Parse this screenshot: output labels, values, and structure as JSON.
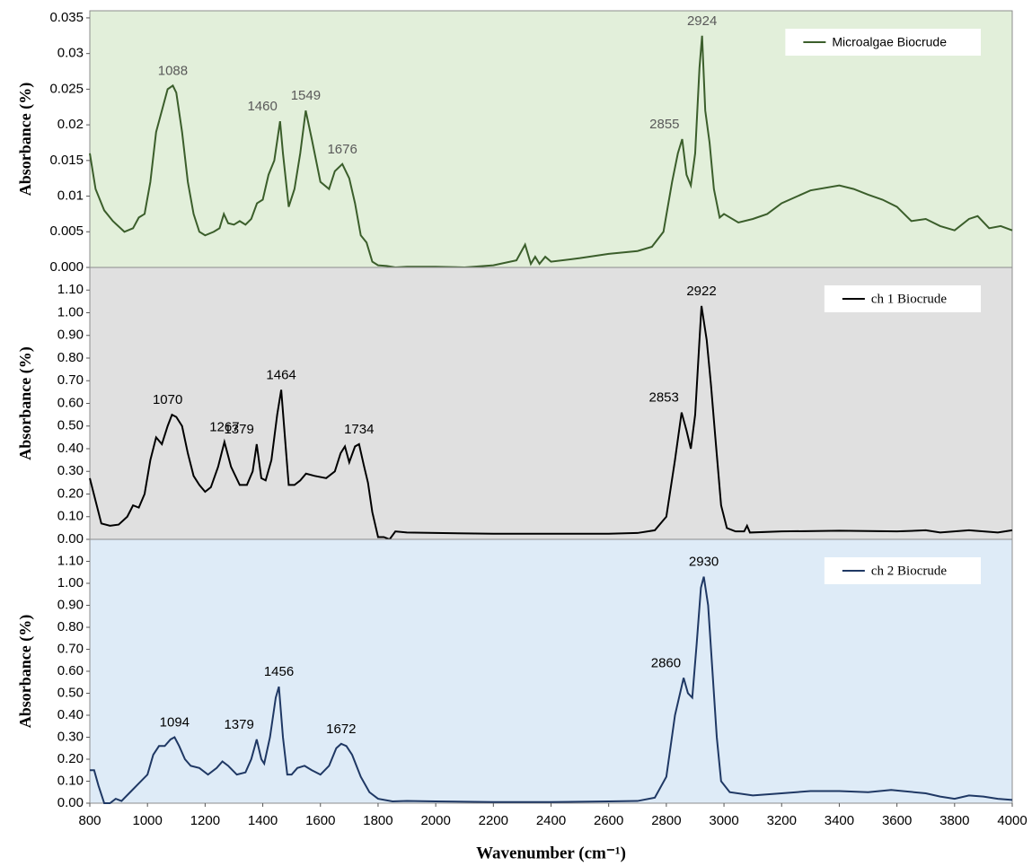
{
  "chart_data": [
    {
      "type": "line",
      "ylabel": "Absorbance (%)",
      "legend": "upper right",
      "background": "#e2efda",
      "xlim": [
        800,
        4000
      ],
      "ylim": [
        0,
        0.036
      ],
      "yticks": [
        {
          "value": 0,
          "label": "0.000"
        },
        0.005,
        0.01,
        0.015,
        0.02,
        0.025,
        0.03,
        0.035
      ],
      "annotations": [
        "1088",
        "1460",
        "1549",
        "1676",
        "2855",
        "2924"
      ],
      "x": [
        800,
        820,
        850,
        880,
        920,
        950,
        970,
        990,
        1010,
        1030,
        1050,
        1070,
        1088,
        1100,
        1120,
        1140,
        1160,
        1180,
        1200,
        1230,
        1250,
        1265,
        1280,
        1300,
        1320,
        1340,
        1360,
        1380,
        1400,
        1420,
        1440,
        1460,
        1470,
        1490,
        1510,
        1530,
        1549,
        1570,
        1600,
        1630,
        1650,
        1676,
        1700,
        1720,
        1740,
        1760,
        1780,
        1800,
        1830,
        1860,
        1900,
        2000,
        2100,
        2200,
        2280,
        2310,
        2330,
        2345,
        2360,
        2380,
        2400,
        2500,
        2600,
        2700,
        2750,
        2790,
        2820,
        2840,
        2855,
        2870,
        2885,
        2900,
        2915,
        2924,
        2935,
        2950,
        2965,
        2985,
        3000,
        3050,
        3100,
        3150,
        3200,
        3300,
        3400,
        3450,
        3500,
        3550,
        3600,
        3650,
        3700,
        3750,
        3800,
        3850,
        3880,
        3920,
        3960,
        4000
      ],
      "series": [
        {
          "name": "Microalgae Biocrude",
          "color": "#3b5e2b",
          "values": [
            0.016,
            0.011,
            0.008,
            0.0065,
            0.005,
            0.0055,
            0.007,
            0.0075,
            0.012,
            0.019,
            0.022,
            0.025,
            0.0255,
            0.0245,
            0.019,
            0.012,
            0.0075,
            0.005,
            0.0045,
            0.005,
            0.0055,
            0.0075,
            0.0062,
            0.006,
            0.0065,
            0.006,
            0.0068,
            0.009,
            0.0095,
            0.013,
            0.015,
            0.0205,
            0.016,
            0.0085,
            0.011,
            0.016,
            0.022,
            0.018,
            0.012,
            0.011,
            0.0135,
            0.0145,
            0.0125,
            0.009,
            0.0045,
            0.0035,
            0.0008,
            0.0003,
            0.0002,
            0,
            0.0001,
            0.0001,
            0,
            0.0003,
            0.001,
            0.0032,
            0.0005,
            0.0015,
            0.0005,
            0.0015,
            0.0008,
            0.0013,
            0.0019,
            0.0023,
            0.0029,
            0.005,
            0.012,
            0.016,
            0.018,
            0.013,
            0.0115,
            0.016,
            0.028,
            0.0325,
            0.022,
            0.0175,
            0.011,
            0.007,
            0.0075,
            0.0063,
            0.0068,
            0.0075,
            0.009,
            0.0108,
            0.0115,
            0.011,
            0.0102,
            0.0095,
            0.0085,
            0.0065,
            0.0068,
            0.0058,
            0.0052,
            0.0068,
            0.0072,
            0.0055,
            0.0058,
            0.0052
          ]
        }
      ]
    },
    {
      "type": "line",
      "ylabel": "Absorbance (%)",
      "legend": "upper right",
      "background": "#e0e0e0",
      "xlim": [
        800,
        4000
      ],
      "ylim": [
        0,
        1.2
      ],
      "yticks": [
        {
          "value": 0,
          "label": "0.00"
        },
        {
          "value": 0.1,
          "label": "0.10"
        },
        {
          "value": 0.2,
          "label": "0.20"
        },
        {
          "value": 0.3,
          "label": "0.30"
        },
        {
          "value": 0.4,
          "label": "0.40"
        },
        {
          "value": 0.5,
          "label": "0.50"
        },
        {
          "value": 0.6,
          "label": "0.60"
        },
        {
          "value": 0.7,
          "label": "0.70"
        },
        {
          "value": 0.8,
          "label": "0.80"
        },
        {
          "value": 0.9,
          "label": "0.90"
        },
        {
          "value": 1,
          "label": "1.00"
        },
        {
          "value": 1.1,
          "label": "1.10"
        }
      ],
      "annotations": [
        "1070",
        "1267",
        "1379",
        "1464",
        "1734",
        "2853",
        "2922"
      ],
      "x": [
        800,
        820,
        840,
        870,
        900,
        930,
        950,
        970,
        990,
        1010,
        1030,
        1050,
        1070,
        1085,
        1100,
        1120,
        1140,
        1160,
        1180,
        1200,
        1220,
        1245,
        1267,
        1290,
        1320,
        1345,
        1365,
        1379,
        1395,
        1410,
        1430,
        1450,
        1464,
        1480,
        1490,
        1510,
        1530,
        1550,
        1580,
        1620,
        1650,
        1670,
        1685,
        1700,
        1720,
        1734,
        1750,
        1765,
        1780,
        1800,
        1820,
        1840,
        1860,
        1900,
        2000,
        2200,
        2400,
        2600,
        2700,
        2760,
        2800,
        2830,
        2853,
        2870,
        2885,
        2900,
        2915,
        2922,
        2940,
        2955,
        2970,
        2990,
        3010,
        3040,
        3070,
        3080,
        3090,
        3200,
        3400,
        3600,
        3700,
        3750,
        3850,
        3950,
        4000
      ],
      "series": [
        {
          "name": "ch 1 Biocrude",
          "color": "#000000",
          "values": [
            0.27,
            0.17,
            0.07,
            0.06,
            0.065,
            0.1,
            0.15,
            0.14,
            0.2,
            0.35,
            0.45,
            0.42,
            0.5,
            0.55,
            0.54,
            0.5,
            0.38,
            0.28,
            0.24,
            0.21,
            0.23,
            0.32,
            0.43,
            0.32,
            0.24,
            0.24,
            0.3,
            0.42,
            0.27,
            0.26,
            0.35,
            0.55,
            0.66,
            0.4,
            0.24,
            0.24,
            0.26,
            0.29,
            0.28,
            0.27,
            0.3,
            0.38,
            0.41,
            0.34,
            0.41,
            0.42,
            0.33,
            0.25,
            0.12,
            0.01,
            0.01,
            0,
            0.035,
            0.03,
            0.028,
            0.025,
            0.025,
            0.025,
            0.028,
            0.04,
            0.1,
            0.35,
            0.56,
            0.48,
            0.4,
            0.55,
            0.88,
            1.03,
            0.88,
            0.68,
            0.45,
            0.15,
            0.05,
            0.035,
            0.035,
            0.06,
            0.03,
            0.035,
            0.038,
            0.035,
            0.04,
            0.03,
            0.04,
            0.03,
            0.04
          ]
        }
      ]
    },
    {
      "type": "line",
      "ylabel": "Absorbance (%)",
      "legend": "upper right",
      "background": "#deebf7",
      "xlabel": "Wavenumber (cm⁻¹)",
      "xlim": [
        800,
        4000
      ],
      "ylim": [
        0,
        1.2
      ],
      "xticks": [
        800,
        1000,
        1200,
        1400,
        1600,
        1800,
        2000,
        2200,
        2400,
        2600,
        2800,
        3000,
        3200,
        3400,
        3600,
        3800,
        4000
      ],
      "yticks": [
        {
          "value": 0,
          "label": "0.00"
        },
        {
          "value": 0.1,
          "label": "0.10"
        },
        {
          "value": 0.2,
          "label": "0.20"
        },
        {
          "value": 0.3,
          "label": "0.30"
        },
        {
          "value": 0.4,
          "label": "0.40"
        },
        {
          "value": 0.5,
          "label": "0.50"
        },
        {
          "value": 0.6,
          "label": "0.60"
        },
        {
          "value": 0.7,
          "label": "0.70"
        },
        {
          "value": 0.8,
          "label": "0.80"
        },
        {
          "value": 0.9,
          "label": "0.90"
        },
        {
          "value": 1,
          "label": "1.00"
        },
        {
          "value": 1.1,
          "label": "1.10"
        }
      ],
      "annotations": [
        "1094",
        "1379",
        "1456",
        "1672",
        "2860",
        "2930"
      ],
      "x": [
        800,
        815,
        830,
        850,
        870,
        890,
        910,
        940,
        970,
        1000,
        1020,
        1040,
        1060,
        1080,
        1094,
        1110,
        1130,
        1150,
        1180,
        1210,
        1240,
        1260,
        1280,
        1310,
        1340,
        1360,
        1379,
        1395,
        1405,
        1425,
        1445,
        1456,
        1470,
        1485,
        1500,
        1520,
        1545,
        1570,
        1600,
        1630,
        1655,
        1672,
        1690,
        1710,
        1740,
        1770,
        1800,
        1850,
        1900,
        2000,
        2200,
        2400,
        2600,
        2700,
        2760,
        2800,
        2830,
        2860,
        2875,
        2890,
        2905,
        2920,
        2930,
        2945,
        2960,
        2975,
        2990,
        3020,
        3100,
        3200,
        3300,
        3400,
        3500,
        3580,
        3620,
        3700,
        3750,
        3800,
        3850,
        3900,
        3950,
        4000
      ],
      "series": [
        {
          "name": "ch 2 Biocrude",
          "color": "#1f3864",
          "values": [
            0.15,
            0.15,
            0.08,
            0,
            0,
            0.02,
            0.01,
            0.05,
            0.09,
            0.13,
            0.22,
            0.26,
            0.26,
            0.29,
            0.3,
            0.26,
            0.2,
            0.17,
            0.16,
            0.13,
            0.16,
            0.19,
            0.17,
            0.13,
            0.14,
            0.2,
            0.29,
            0.2,
            0.18,
            0.3,
            0.48,
            0.53,
            0.3,
            0.13,
            0.13,
            0.16,
            0.17,
            0.15,
            0.13,
            0.17,
            0.25,
            0.27,
            0.26,
            0.22,
            0.12,
            0.05,
            0.02,
            0.008,
            0.01,
            0.008,
            0.005,
            0.005,
            0.008,
            0.01,
            0.025,
            0.12,
            0.4,
            0.57,
            0.5,
            0.48,
            0.72,
            0.98,
            1.03,
            0.9,
            0.6,
            0.3,
            0.1,
            0.05,
            0.035,
            0.045,
            0.055,
            0.055,
            0.05,
            0.06,
            0.055,
            0.045,
            0.03,
            0.02,
            0.035,
            0.03,
            0.02,
            0.015
          ]
        }
      ]
    }
  ]
}
